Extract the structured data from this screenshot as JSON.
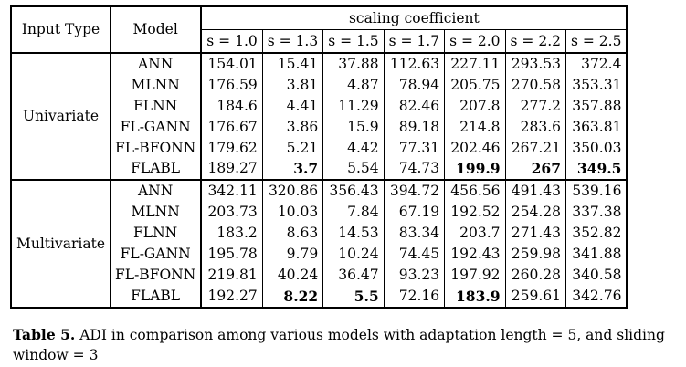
{
  "table": {
    "header": {
      "input_type": "Input Type",
      "model": "Model",
      "group": "scaling coefficient",
      "s_labels": [
        "s = 1.0",
        "s = 1.3",
        "s = 1.5",
        "s = 1.7",
        "s = 2.0",
        "s = 2.2",
        "s = 2.5"
      ]
    },
    "groups": [
      {
        "name": "Univariate",
        "rows": [
          {
            "model": "ANN",
            "values": [
              "154.01",
              "15.41",
              "37.88",
              "112.63",
              "227.11",
              "293.53",
              "372.4"
            ],
            "bold": [
              false,
              false,
              false,
              false,
              false,
              false,
              false
            ]
          },
          {
            "model": "MLNN",
            "values": [
              "176.59",
              "3.81",
              "4.87",
              "78.94",
              "205.75",
              "270.58",
              "353.31"
            ],
            "bold": [
              false,
              false,
              false,
              false,
              false,
              false,
              false
            ]
          },
          {
            "model": "FLNN",
            "values": [
              "184.6",
              "4.41",
              "11.29",
              "82.46",
              "207.8",
              "277.2",
              "357.88"
            ],
            "bold": [
              false,
              false,
              false,
              false,
              false,
              false,
              false
            ]
          },
          {
            "model": "FL-GANN",
            "values": [
              "176.67",
              "3.86",
              "15.9",
              "89.18",
              "214.8",
              "283.6",
              "363.81"
            ],
            "bold": [
              false,
              false,
              false,
              false,
              false,
              false,
              false
            ]
          },
          {
            "model": "FL-BFONN",
            "values": [
              "179.62",
              "5.21",
              "4.42",
              "77.31",
              "202.46",
              "267.21",
              "350.03"
            ],
            "bold": [
              false,
              false,
              false,
              false,
              false,
              false,
              false
            ]
          },
          {
            "model": "FLABL",
            "values": [
              "189.27",
              "3.7",
              "5.54",
              "74.73",
              "199.9",
              "267",
              "349.5"
            ],
            "bold": [
              false,
              true,
              false,
              false,
              true,
              true,
              true
            ]
          }
        ]
      },
      {
        "name": "Multivariate",
        "rows": [
          {
            "model": "ANN",
            "values": [
              "342.11",
              "320.86",
              "356.43",
              "394.72",
              "456.56",
              "491.43",
              "539.16"
            ],
            "bold": [
              false,
              false,
              false,
              false,
              false,
              false,
              false
            ]
          },
          {
            "model": "MLNN",
            "values": [
              "203.73",
              "10.03",
              "7.84",
              "67.19",
              "192.52",
              "254.28",
              "337.38"
            ],
            "bold": [
              false,
              false,
              false,
              false,
              false,
              false,
              false
            ]
          },
          {
            "model": "FLNN",
            "values": [
              "183.2",
              "8.63",
              "14.53",
              "83.34",
              "203.7",
              "271.43",
              "352.82"
            ],
            "bold": [
              false,
              false,
              false,
              false,
              false,
              false,
              false
            ]
          },
          {
            "model": "FL-GANN",
            "values": [
              "195.78",
              "9.79",
              "10.24",
              "74.45",
              "192.43",
              "259.98",
              "341.88"
            ],
            "bold": [
              false,
              false,
              false,
              false,
              false,
              false,
              false
            ]
          },
          {
            "model": "FL-BFONN",
            "values": [
              "219.81",
              "40.24",
              "36.47",
              "93.23",
              "197.92",
              "260.28",
              "340.58"
            ],
            "bold": [
              false,
              false,
              false,
              false,
              false,
              false,
              false
            ]
          },
          {
            "model": "FLABL",
            "values": [
              "192.27",
              "8.22",
              "5.5",
              "72.16",
              "183.9",
              "259.61",
              "342.76"
            ],
            "bold": [
              false,
              true,
              true,
              false,
              true,
              false,
              false
            ]
          }
        ]
      }
    ]
  },
  "caption": {
    "label": "Table 5.",
    "text": " ADI in comparison among various models with adaptation length = 5, and sliding window = 3"
  }
}
